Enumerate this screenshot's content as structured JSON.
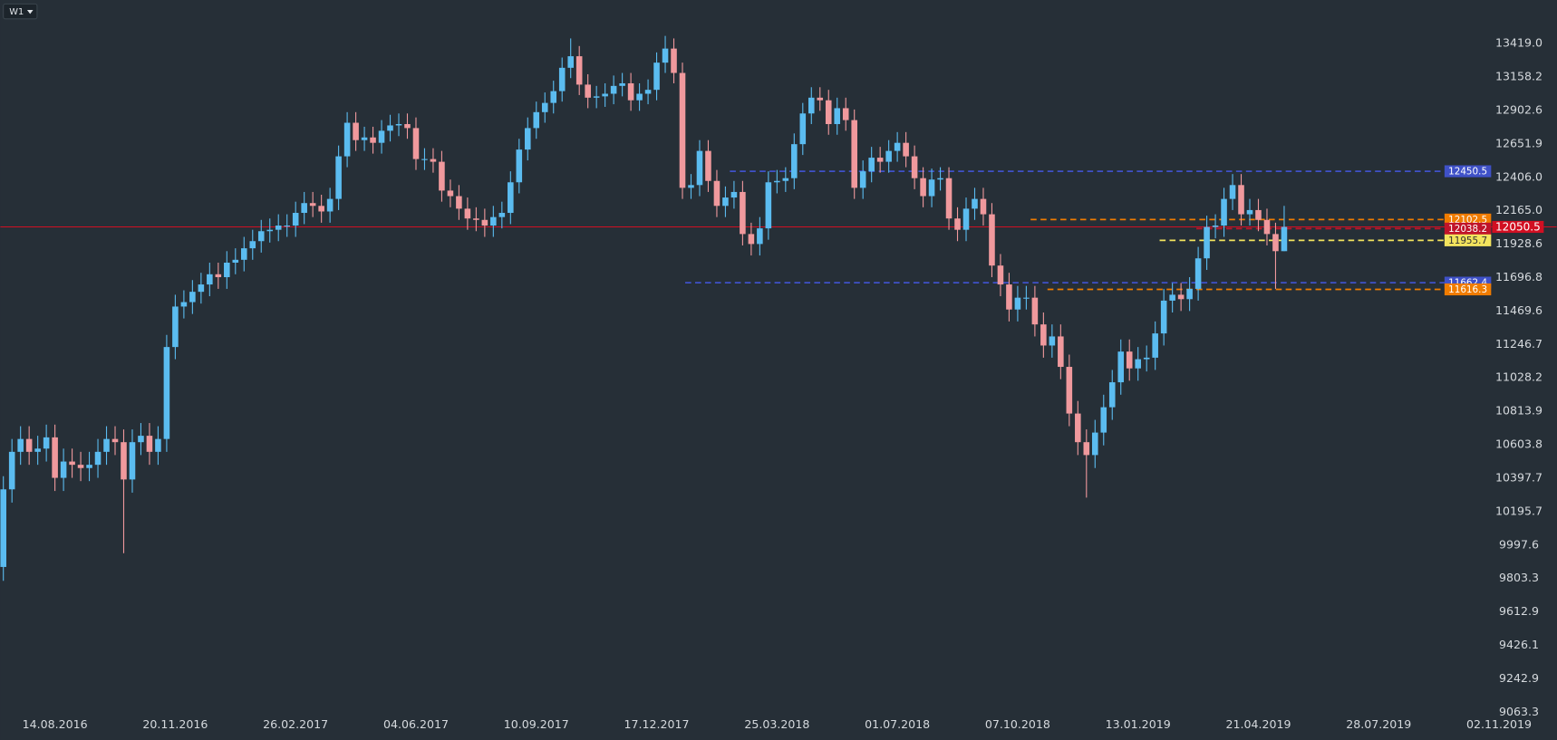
{
  "timeframe": "W1",
  "chart_data": {
    "type": "candlestick",
    "log_scale": true,
    "grid": false,
    "colors": {
      "up": "#5bbcf0",
      "down": "#f0999d"
    },
    "open": [
      9870,
      10330,
      10560,
      10640,
      10560,
      10580,
      10650,
      10400,
      10500,
      10480,
      10460,
      10480,
      10560,
      10640,
      10620,
      10390,
      10620,
      10660,
      10560,
      10640,
      11230,
      11500,
      11530,
      11600,
      11650,
      11720,
      11700,
      11800,
      11820,
      11900,
      11950,
      12020,
      12030,
      12060,
      12060,
      12150,
      12220,
      12200,
      12160,
      12250,
      12560,
      12810,
      12680,
      12700,
      12660,
      12750,
      12790,
      12800,
      12770,
      12540,
      12540,
      12520,
      12310,
      12270,
      12180,
      12110,
      12100,
      12060,
      12120,
      12150,
      12370,
      12610,
      12770,
      12890,
      12960,
      13050,
      13230,
      13320,
      13100,
      13000,
      13010,
      13030,
      13090,
      13110,
      12980,
      13030,
      13060,
      13270,
      13380,
      13190,
      12330,
      12350,
      12600,
      12380,
      12200,
      12260,
      12300,
      12000,
      11930,
      12040,
      12370,
      12380,
      12400,
      12650,
      12880,
      13000,
      12980,
      12800,
      12920,
      12830,
      12330,
      12450,
      12550,
      12520,
      12600,
      12660,
      12560,
      12400,
      12270,
      12390,
      12400,
      12110,
      12030,
      12180,
      12250,
      12140,
      11780,
      11650,
      11480,
      11560,
      11560,
      11380,
      11240,
      11300,
      11100,
      10800,
      10620,
      10540,
      10680,
      10840,
      11000,
      11200,
      11090,
      11150,
      11160,
      11320,
      11540,
      11580,
      11550,
      11620,
      11830,
      12050,
      12060,
      12250,
      12350,
      12140,
      12170,
      12100,
      12000,
      11880
    ],
    "high": [
      10410,
      10640,
      10720,
      10720,
      10660,
      10730,
      10730,
      10580,
      10580,
      10560,
      10560,
      10640,
      10720,
      10720,
      10700,
      10700,
      10740,
      10740,
      10720,
      11310,
      11580,
      11610,
      11680,
      11730,
      11800,
      11800,
      11880,
      11900,
      11980,
      12030,
      12100,
      12110,
      12140,
      12140,
      12230,
      12300,
      12300,
      12280,
      12330,
      12640,
      12890,
      12890,
      12780,
      12780,
      12830,
      12870,
      12880,
      12880,
      12850,
      12620,
      12620,
      12600,
      12390,
      12350,
      12260,
      12190,
      12180,
      12200,
      12230,
      12450,
      12690,
      12850,
      12970,
      13040,
      13130,
      13310,
      13460,
      13400,
      13180,
      13090,
      13110,
      13170,
      13190,
      13190,
      13110,
      13140,
      13350,
      13480,
      13460,
      13270,
      12430,
      12680,
      12680,
      12460,
      12340,
      12380,
      12380,
      12080,
      12120,
      12450,
      12460,
      12480,
      12730,
      12960,
      13080,
      13080,
      13060,
      13000,
      13000,
      12910,
      12530,
      12630,
      12630,
      12680,
      12740,
      12740,
      12640,
      12480,
      12470,
      12480,
      12480,
      12190,
      12260,
      12330,
      12330,
      12220,
      11860,
      11730,
      11640,
      11640,
      11640,
      11460,
      11380,
      11380,
      11180,
      10880,
      10700,
      10760,
      10920,
      11080,
      11280,
      11280,
      11230,
      11240,
      11400,
      11620,
      11660,
      11660,
      11700,
      11910,
      12130,
      12140,
      12330,
      12430,
      12430,
      12250,
      12250,
      12180,
      12080,
      12200
    ],
    "low": [
      9790,
      10250,
      10480,
      10480,
      10480,
      10500,
      10320,
      10320,
      10400,
      10380,
      10380,
      10400,
      10480,
      10540,
      9950,
      10310,
      10540,
      10480,
      10480,
      10560,
      11150,
      11420,
      11450,
      11520,
      11570,
      11620,
      11620,
      11720,
      11740,
      11820,
      11870,
      11940,
      11950,
      11980,
      11980,
      12070,
      12120,
      12080,
      12080,
      12170,
      12480,
      12600,
      12600,
      12580,
      12580,
      12670,
      12710,
      12690,
      12460,
      12460,
      12440,
      12230,
      12190,
      12100,
      12030,
      12020,
      11980,
      11980,
      12040,
      12070,
      12290,
      12530,
      12690,
      12810,
      12880,
      12970,
      13150,
      13020,
      12920,
      12920,
      12930,
      12950,
      13010,
      12900,
      12900,
      12950,
      12980,
      13190,
      13110,
      12250,
      12250,
      12270,
      12300,
      12120,
      12120,
      12180,
      11920,
      11850,
      11850,
      11960,
      12290,
      12300,
      12320,
      12570,
      12800,
      12900,
      12720,
      12720,
      12750,
      12250,
      12250,
      12370,
      12440,
      12440,
      12520,
      12480,
      12320,
      12190,
      12190,
      12310,
      12030,
      11950,
      11950,
      12100,
      12060,
      11700,
      11570,
      11400,
      11400,
      11480,
      11300,
      11160,
      11160,
      11020,
      10720,
      10540,
      10280,
      10460,
      10600,
      10760,
      10920,
      11010,
      11010,
      11070,
      11080,
      11240,
      11460,
      11470,
      11470,
      11540,
      11750,
      11970,
      11980,
      12170,
      12060,
      12060,
      12020,
      11920,
      11620,
      11880
    ],
    "close": [
      10330,
      10560,
      10640,
      10560,
      10580,
      10650,
      10400,
      10500,
      10480,
      10460,
      10480,
      10560,
      10640,
      10620,
      10390,
      10620,
      10660,
      10560,
      10640,
      11230,
      11500,
      11530,
      11600,
      11650,
      11720,
      11700,
      11800,
      11820,
      11900,
      11950,
      12020,
      12030,
      12060,
      12060,
      12150,
      12220,
      12200,
      12160,
      12250,
      12560,
      12810,
      12680,
      12700,
      12660,
      12750,
      12790,
      12800,
      12770,
      12540,
      12540,
      12520,
      12310,
      12270,
      12180,
      12110,
      12100,
      12060,
      12120,
      12150,
      12370,
      12610,
      12770,
      12890,
      12960,
      13050,
      13230,
      13320,
      13100,
      13000,
      13010,
      13030,
      13090,
      13110,
      12980,
      13030,
      13060,
      13270,
      13380,
      13190,
      12330,
      12350,
      12600,
      12380,
      12200,
      12260,
      12300,
      12000,
      11930,
      12040,
      12370,
      12380,
      12400,
      12650,
      12880,
      13000,
      12980,
      12800,
      12920,
      12830,
      12330,
      12450,
      12550,
      12520,
      12600,
      12660,
      12560,
      12400,
      12270,
      12390,
      12400,
      12110,
      12030,
      12180,
      12250,
      12140,
      11780,
      11650,
      11480,
      11560,
      11560,
      11380,
      11240,
      11300,
      11100,
      10800,
      10620,
      10540,
      10680,
      10840,
      11000,
      11200,
      11090,
      11150,
      11160,
      11320,
      11540,
      11580,
      11550,
      11620,
      11830,
      12050,
      12060,
      12250,
      12350,
      12140,
      12170,
      12100,
      12000,
      11880,
      12050.5
    ],
    "xlim": [
      -0.35,
      180.7
    ],
    "xticks": [
      {
        "value": 6,
        "label": "14.08.2016"
      },
      {
        "value": 20,
        "label": "20.11.2016"
      },
      {
        "value": 34,
        "label": "26.02.2017"
      },
      {
        "value": 48,
        "label": "04.06.2017"
      },
      {
        "value": 62,
        "label": "10.09.2017"
      },
      {
        "value": 76,
        "label": "17.12.2017"
      },
      {
        "value": 90,
        "label": "25.03.2018"
      },
      {
        "value": 104,
        "label": "01.07.2018"
      },
      {
        "value": 118,
        "label": "07.10.2018"
      },
      {
        "value": 132,
        "label": "13.01.2019"
      },
      {
        "value": 146,
        "label": "21.04.2019"
      },
      {
        "value": 160,
        "label": "28.07.2019"
      },
      {
        "value": 174,
        "label": "02.11.2019"
      }
    ],
    "ylim": [
      9063.3,
      13767
    ],
    "yticks": [
      {
        "value": 13419.0,
        "label": "13419.0"
      },
      13158.2,
      12902.6,
      12651.9,
      {
        "value": 12406.0,
        "label": "12406.0"
      },
      {
        "value": 12165.0,
        "label": "12165.0"
      },
      11928.6,
      11696.8,
      11469.6,
      11246.7,
      11028.2,
      10813.9,
      10603.8,
      10397.7,
      10195.7,
      9997.6,
      9803.3,
      9612.9,
      9426.1,
      9242.9,
      9063.3
    ],
    "levels": [
      {
        "value": 12450.5,
        "color": "#3f51c8",
        "dashed": true
      },
      {
        "value": 12102.5,
        "color": "#f07c00",
        "dashed": true
      },
      {
        "value": 12038.2,
        "color": "#c0142a",
        "dashed": true
      },
      {
        "value": 11955.7,
        "color": "#f3e45e",
        "dashed": true
      },
      {
        "value": 11662.4,
        "color": "#3f51c8",
        "dashed": true
      },
      {
        "value": 11616.3,
        "color": "#f07c00",
        "dashed": true
      },
      {
        "value": 12050.5,
        "color": "#d10f22",
        "dashed": false
      }
    ]
  }
}
